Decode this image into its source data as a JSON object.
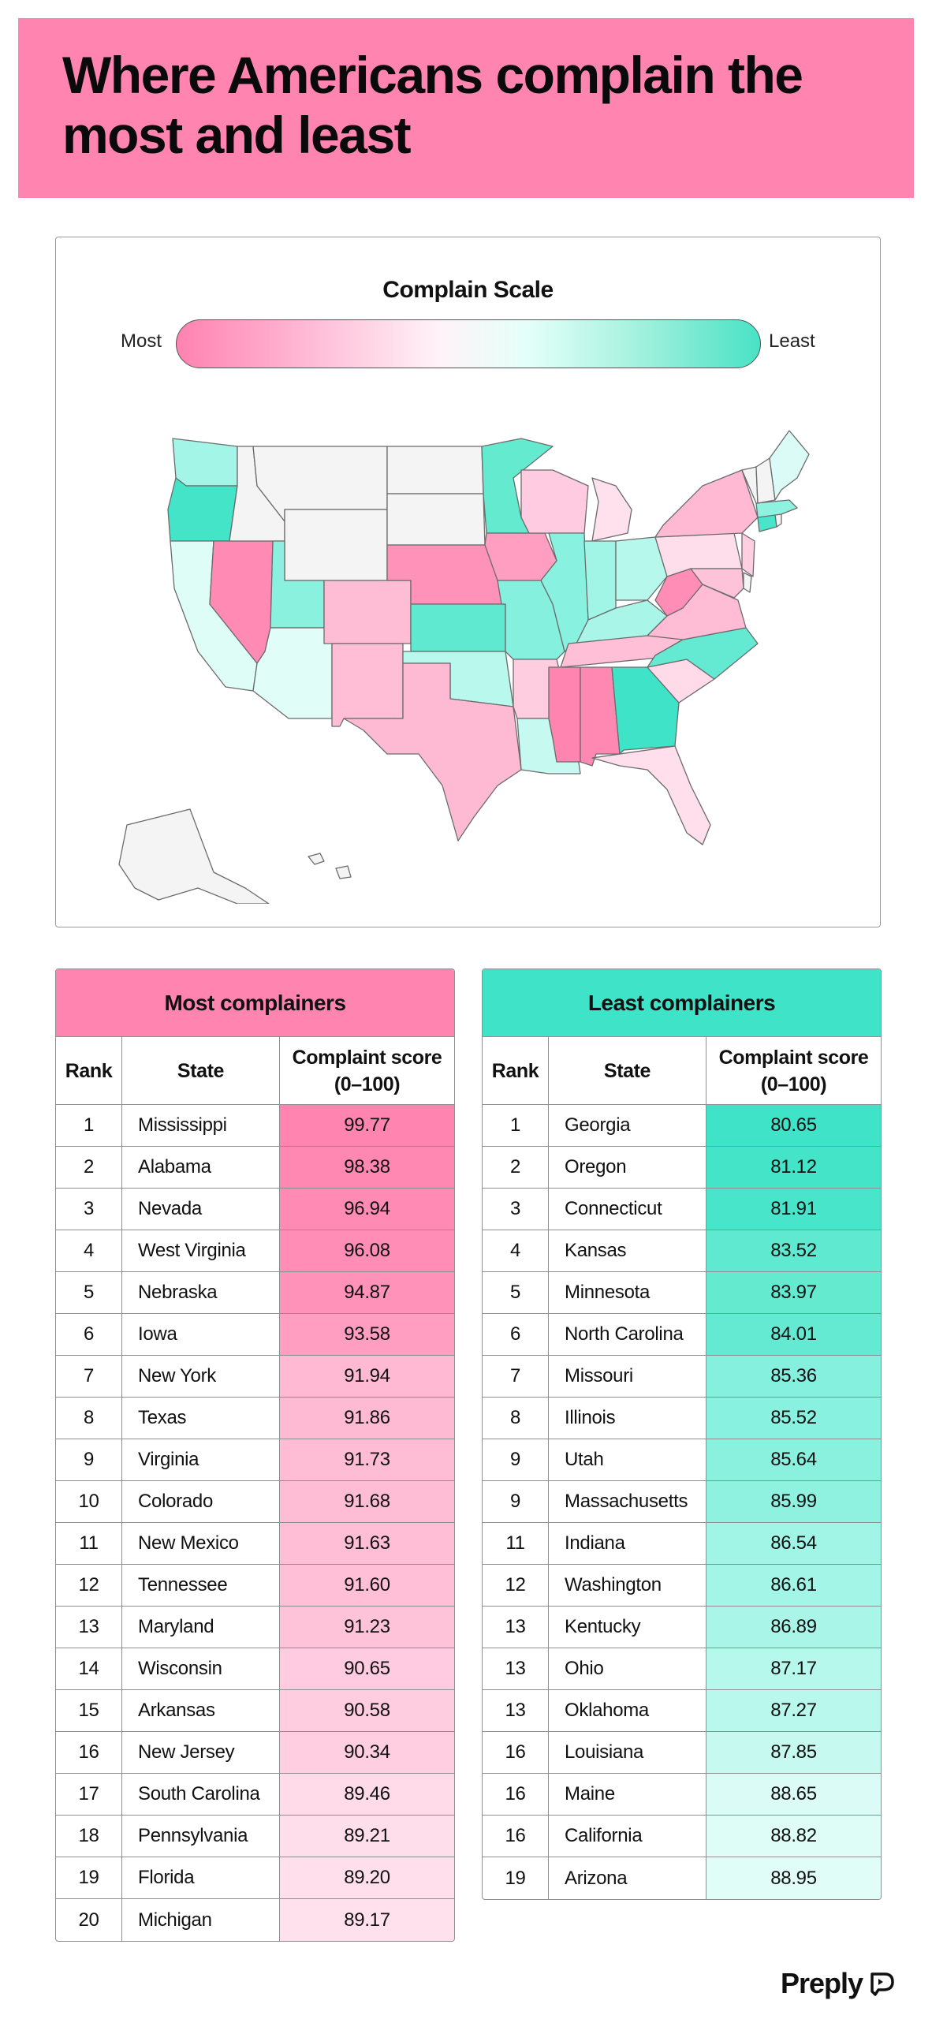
{
  "title": "Where Americans complain the most and least",
  "scale": {
    "title": "Complain Scale",
    "most_label": "Most",
    "least_label": "Least"
  },
  "colors": {
    "header": "#ff85b0",
    "most_accent": "#ff85b0",
    "least_accent": "#3fe3c7"
  },
  "most_table": {
    "title": "Most complainers",
    "col_rank": "Rank",
    "col_state": "State",
    "col_score": "Complaint score (0–100)",
    "rows": [
      {
        "rank": "1",
        "state": "Mississippi",
        "score": "99.77",
        "color": "#ff85b0"
      },
      {
        "rank": "2",
        "state": "Alabama",
        "score": "98.38",
        "color": "#ff88b2"
      },
      {
        "rank": "3",
        "state": "Nevada",
        "score": "96.94",
        "color": "#ff8bb4"
      },
      {
        "rank": "4",
        "state": "West Virginia",
        "score": "96.08",
        "color": "#ff8db5"
      },
      {
        "rank": "5",
        "state": "Nebraska",
        "score": "94.87",
        "color": "#ff92b8"
      },
      {
        "rank": "6",
        "state": "Iowa",
        "score": "93.58",
        "color": "#ff9ec0"
      },
      {
        "rank": "7",
        "state": "New York",
        "score": "91.94",
        "color": "#ffb9d3"
      },
      {
        "rank": "8",
        "state": "Texas",
        "score": "91.86",
        "color": "#ffbad3"
      },
      {
        "rank": "9",
        "state": "Virginia",
        "score": "91.73",
        "color": "#ffbcd4"
      },
      {
        "rank": "10",
        "state": "Colorado",
        "score": "91.68",
        "color": "#ffbdd5"
      },
      {
        "rank": "11",
        "state": "New Mexico",
        "score": "91.63",
        "color": "#ffbed5"
      },
      {
        "rank": "12",
        "state": "Tennessee",
        "score": "91.60",
        "color": "#ffbfd6"
      },
      {
        "rank": "13",
        "state": "Maryland",
        "score": "91.23",
        "color": "#ffc3d9"
      },
      {
        "rank": "14",
        "state": "Wisconsin",
        "score": "90.65",
        "color": "#ffcbe0"
      },
      {
        "rank": "15",
        "state": "Arkansas",
        "score": "90.58",
        "color": "#ffcce0"
      },
      {
        "rank": "16",
        "state": "New Jersey",
        "score": "90.34",
        "color": "#ffcee1"
      },
      {
        "rank": "17",
        "state": "South Carolina",
        "score": "89.46",
        "color": "#ffdbe9"
      },
      {
        "rank": "18",
        "state": "Pennsylvania",
        "score": "89.21",
        "color": "#ffdeeb"
      },
      {
        "rank": "19",
        "state": "Florida",
        "score": "89.20",
        "color": "#ffdfec"
      },
      {
        "rank": "20",
        "state": "Michigan",
        "score": "89.17",
        "color": "#ffe0ed"
      }
    ]
  },
  "least_table": {
    "title": "Least complainers",
    "col_rank": "Rank",
    "col_state": "State",
    "col_score": "Complaint score (0–100)",
    "rows": [
      {
        "rank": "1",
        "state": "Georgia",
        "score": "80.65",
        "color": "#3fe3c7"
      },
      {
        "rank": "2",
        "state": "Oregon",
        "score": "81.12",
        "color": "#43e4c8"
      },
      {
        "rank": "3",
        "state": "Connecticut",
        "score": "81.91",
        "color": "#48e5ca"
      },
      {
        "rank": "4",
        "state": "Kansas",
        "score": "83.52",
        "color": "#5fe9d0"
      },
      {
        "rank": "5",
        "state": "Minnesota",
        "score": "83.97",
        "color": "#63eacf"
      },
      {
        "rank": "6",
        "state": "North Carolina",
        "score": "84.01",
        "color": "#64ead2"
      },
      {
        "rank": "7",
        "state": "Missouri",
        "score": "85.36",
        "color": "#85f0de"
      },
      {
        "rank": "8",
        "state": "Illinois",
        "score": "85.52",
        "color": "#88f1df"
      },
      {
        "rank": "9",
        "state": "Utah",
        "score": "85.64",
        "color": "#8af1df"
      },
      {
        "rank": "9",
        "state": "Massachusetts",
        "score": "85.99",
        "color": "#8ff2e1"
      },
      {
        "rank": "11",
        "state": "Indiana",
        "score": "86.54",
        "color": "#a1f5e6"
      },
      {
        "rank": "12",
        "state": "Washington",
        "score": "86.61",
        "color": "#a3f5e7"
      },
      {
        "rank": "13",
        "state": "Kentucky",
        "score": "86.89",
        "color": "#a9f6e9"
      },
      {
        "rank": "13",
        "state": "Ohio",
        "score": "87.17",
        "color": "#b7f8ec"
      },
      {
        "rank": "13",
        "state": "Oklahoma",
        "score": "87.27",
        "color": "#b9f8ed"
      },
      {
        "rank": "16",
        "state": "Louisiana",
        "score": "87.85",
        "color": "#c6faf0"
      },
      {
        "rank": "16",
        "state": "Maine",
        "score": "88.65",
        "color": "#dbfcf6"
      },
      {
        "rank": "16",
        "state": "California",
        "score": "88.82",
        "color": "#defdf7"
      },
      {
        "rank": "19",
        "state": "Arizona",
        "score": "88.95",
        "color": "#e0fdf8"
      }
    ]
  },
  "map": {
    "states": [
      {
        "name": "Washington",
        "color": "#a3f5e7"
      },
      {
        "name": "Oregon",
        "color": "#43e4c8"
      },
      {
        "name": "California",
        "color": "#defdf7"
      },
      {
        "name": "Nevada",
        "color": "#ff8bb4"
      },
      {
        "name": "Idaho",
        "color": "#f4f4f4"
      },
      {
        "name": "Montana",
        "color": "#f4f4f4"
      },
      {
        "name": "Wyoming",
        "color": "#f4f4f4"
      },
      {
        "name": "Utah",
        "color": "#8af1df"
      },
      {
        "name": "Arizona",
        "color": "#e0fdf8"
      },
      {
        "name": "Colorado",
        "color": "#ffbdd5"
      },
      {
        "name": "New Mexico",
        "color": "#ffbed5"
      },
      {
        "name": "North Dakota",
        "color": "#f4f4f4"
      },
      {
        "name": "South Dakota",
        "color": "#f4f4f4"
      },
      {
        "name": "Nebraska",
        "color": "#ff92b8"
      },
      {
        "name": "Kansas",
        "color": "#5fe9d0"
      },
      {
        "name": "Oklahoma",
        "color": "#b9f8ed"
      },
      {
        "name": "Texas",
        "color": "#ffbad3"
      },
      {
        "name": "Minnesota",
        "color": "#63eacf"
      },
      {
        "name": "Iowa",
        "color": "#ff9ec0"
      },
      {
        "name": "Missouri",
        "color": "#85f0de"
      },
      {
        "name": "Arkansas",
        "color": "#ffcce0"
      },
      {
        "name": "Louisiana",
        "color": "#c6faf0"
      },
      {
        "name": "Wisconsin",
        "color": "#ffcbe0"
      },
      {
        "name": "Illinois",
        "color": "#88f1df"
      },
      {
        "name": "Michigan",
        "color": "#ffe0ed"
      },
      {
        "name": "Indiana",
        "color": "#a1f5e6"
      },
      {
        "name": "Ohio",
        "color": "#b7f8ec"
      },
      {
        "name": "Kentucky",
        "color": "#a9f6e9"
      },
      {
        "name": "Tennessee",
        "color": "#ffbfd6"
      },
      {
        "name": "Mississippi",
        "color": "#ff85b0"
      },
      {
        "name": "Alabama",
        "color": "#ff88b2"
      },
      {
        "name": "Georgia",
        "color": "#3fe3c7"
      },
      {
        "name": "Florida",
        "color": "#ffdfec"
      },
      {
        "name": "South Carolina",
        "color": "#ffdbe9"
      },
      {
        "name": "North Carolina",
        "color": "#64ead2"
      },
      {
        "name": "Virginia",
        "color": "#ffbcd4"
      },
      {
        "name": "West Virginia",
        "color": "#ff8db5"
      },
      {
        "name": "Pennsylvania",
        "color": "#ffdeeb"
      },
      {
        "name": "New York",
        "color": "#ffb9d3"
      },
      {
        "name": "Maryland",
        "color": "#ffc3d9"
      },
      {
        "name": "New Jersey",
        "color": "#ffcee1"
      },
      {
        "name": "Delaware",
        "color": "#f4f4f4"
      },
      {
        "name": "Connecticut",
        "color": "#48e5ca"
      },
      {
        "name": "Rhode Island",
        "color": "#f4f4f4"
      },
      {
        "name": "Massachusetts",
        "color": "#8ff2e1"
      },
      {
        "name": "Vermont",
        "color": "#f4f4f4"
      },
      {
        "name": "New Hampshire",
        "color": "#f4f4f4"
      },
      {
        "name": "Maine",
        "color": "#dbfcf6"
      },
      {
        "name": "Alaska",
        "color": "#f4f4f4"
      },
      {
        "name": "Hawaii",
        "color": "#f4f4f4"
      }
    ]
  },
  "logo": {
    "text": "Preply",
    "icon": "preply-logo-icon"
  }
}
